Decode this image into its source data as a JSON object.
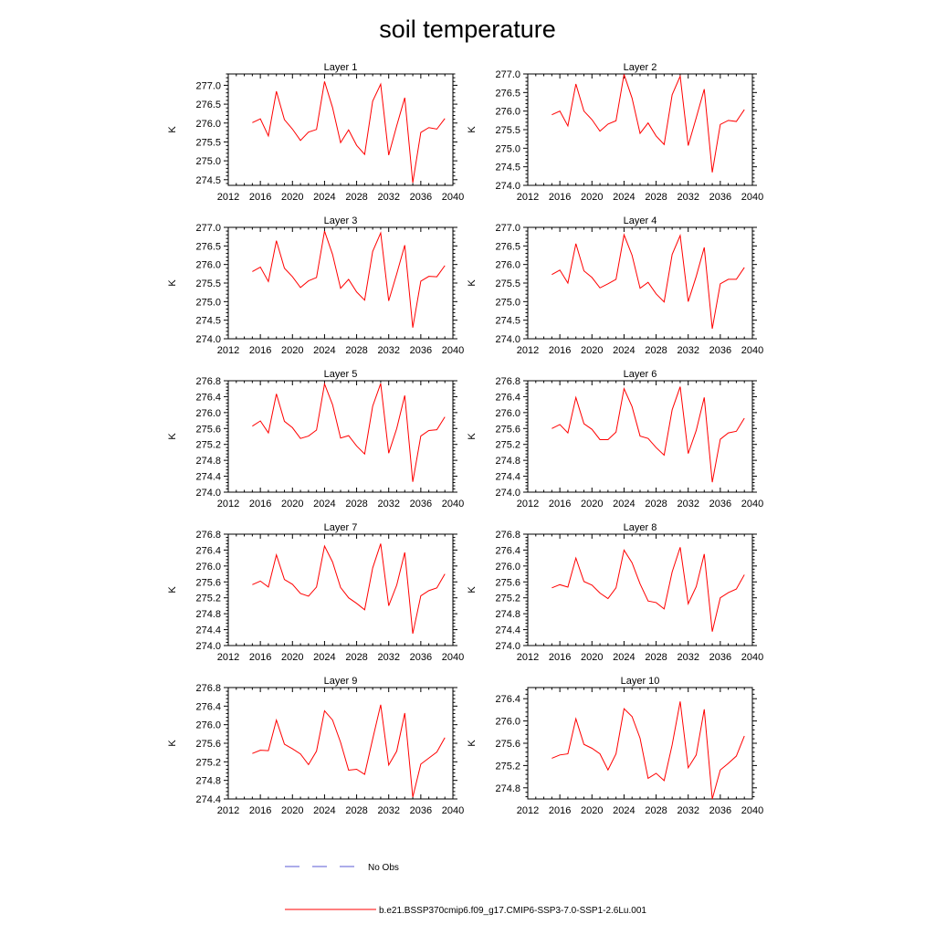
{
  "figure": {
    "title": "soil temperature",
    "legend": [
      {
        "label": "No Obs",
        "color": "#5a5ad6",
        "style": "dashed"
      },
      {
        "label": "b.e21.BSSP370cmip6.f09_g17.CMIP6-SSP3-7.0-SSP1-2.6Lu.001",
        "color": "#ff0000",
        "style": "solid"
      }
    ]
  },
  "chart_data": [
    {
      "type": "line",
      "title": "Layer 1",
      "ylabel": "K",
      "xlim": [
        2012,
        2040
      ],
      "xticks": [
        2012,
        2016,
        2020,
        2024,
        2028,
        2032,
        2036,
        2040
      ],
      "ylim": [
        274.35,
        277.3
      ],
      "yticks": [
        "274.5",
        "275.0",
        "275.5",
        "276.0",
        "276.5",
        "277.0"
      ],
      "x": [
        2015,
        2016,
        2017,
        2018,
        2019,
        2020,
        2021,
        2022,
        2023,
        2024,
        2025,
        2026,
        2027,
        2028,
        2029,
        2030,
        2031,
        2032,
        2033,
        2034,
        2035,
        2036,
        2037,
        2038,
        2039
      ],
      "series": [
        {
          "values": [
            276.01,
            276.11,
            275.66,
            276.84,
            276.09,
            275.84,
            275.54,
            275.76,
            275.83,
            277.1,
            276.41,
            275.48,
            275.82,
            275.41,
            275.17,
            276.58,
            277.03,
            275.15,
            275.93,
            276.67,
            274.42,
            275.75,
            275.88,
            275.84,
            276.12
          ]
        }
      ]
    },
    {
      "type": "line",
      "title": "Layer 2",
      "ylabel": "K",
      "xlim": [
        2012,
        2040
      ],
      "xticks": [
        2012,
        2016,
        2020,
        2024,
        2028,
        2032,
        2036,
        2040
      ],
      "ylim": [
        274.0,
        277.0
      ],
      "yticks": [
        "274.0",
        "274.5",
        "275.0",
        "275.5",
        "276.0",
        "276.5",
        "277.0"
      ],
      "x": [
        2015,
        2016,
        2017,
        2018,
        2019,
        2020,
        2021,
        2022,
        2023,
        2024,
        2025,
        2026,
        2027,
        2028,
        2029,
        2030,
        2031,
        2032,
        2033,
        2034,
        2035,
        2036,
        2037,
        2038,
        2039
      ],
      "series": [
        {
          "values": [
            275.9,
            276.0,
            275.6,
            276.73,
            276.0,
            275.77,
            275.46,
            275.65,
            275.74,
            276.99,
            276.35,
            275.4,
            275.68,
            275.33,
            275.1,
            276.44,
            276.94,
            275.07,
            275.82,
            276.59,
            274.35,
            275.64,
            275.75,
            275.72,
            276.04
          ]
        }
      ]
    },
    {
      "type": "line",
      "title": "Layer 3",
      "ylabel": "K",
      "xlim": [
        2012,
        2040
      ],
      "xticks": [
        2012,
        2016,
        2020,
        2024,
        2028,
        2032,
        2036,
        2040
      ],
      "ylim": [
        274.0,
        277.0
      ],
      "yticks": [
        "274.0",
        "274.5",
        "275.0",
        "275.5",
        "276.0",
        "276.5",
        "277.0"
      ],
      "x": [
        2015,
        2016,
        2017,
        2018,
        2019,
        2020,
        2021,
        2022,
        2023,
        2024,
        2025,
        2026,
        2027,
        2028,
        2029,
        2030,
        2031,
        2032,
        2033,
        2034,
        2035,
        2036,
        2037,
        2038,
        2039
      ],
      "series": [
        {
          "values": [
            275.81,
            275.93,
            275.54,
            276.64,
            275.9,
            275.67,
            275.38,
            275.56,
            275.65,
            276.9,
            276.27,
            275.36,
            275.6,
            275.26,
            275.04,
            276.35,
            276.85,
            275.02,
            275.75,
            276.52,
            274.3,
            275.55,
            275.68,
            275.67,
            275.97
          ]
        }
      ]
    },
    {
      "type": "line",
      "title": "Layer 4",
      "ylabel": "K",
      "xlim": [
        2012,
        2040
      ],
      "xticks": [
        2012,
        2016,
        2020,
        2024,
        2028,
        2032,
        2036,
        2040
      ],
      "ylim": [
        274.0,
        277.0
      ],
      "yticks": [
        "274.0",
        "274.5",
        "275.0",
        "275.5",
        "276.0",
        "276.5",
        "277.0"
      ],
      "x": [
        2015,
        2016,
        2017,
        2018,
        2019,
        2020,
        2021,
        2022,
        2023,
        2024,
        2025,
        2026,
        2027,
        2028,
        2029,
        2030,
        2031,
        2032,
        2033,
        2034,
        2035,
        2036,
        2037,
        2038,
        2039
      ],
      "series": [
        {
          "values": [
            275.73,
            275.85,
            275.5,
            276.56,
            275.83,
            275.65,
            275.37,
            275.48,
            275.6,
            276.8,
            276.25,
            275.36,
            275.52,
            275.21,
            274.99,
            276.27,
            276.78,
            275.0,
            275.68,
            276.46,
            274.27,
            275.48,
            275.6,
            275.6,
            275.92
          ]
        }
      ]
    },
    {
      "type": "line",
      "title": "Layer 5",
      "ylabel": "K",
      "xlim": [
        2012,
        2040
      ],
      "xticks": [
        2012,
        2016,
        2020,
        2024,
        2028,
        2032,
        2036,
        2040
      ],
      "ylim": [
        274.0,
        276.8
      ],
      "yticks": [
        "274.0",
        "274.4",
        "274.8",
        "275.2",
        "275.6",
        "276.0",
        "276.4",
        "276.8"
      ],
      "x": [
        2015,
        2016,
        2017,
        2018,
        2019,
        2020,
        2021,
        2022,
        2023,
        2024,
        2025,
        2026,
        2027,
        2028,
        2029,
        2030,
        2031,
        2032,
        2033,
        2034,
        2035,
        2036,
        2037,
        2038,
        2039
      ],
      "series": [
        {
          "values": [
            275.66,
            275.79,
            275.49,
            276.47,
            275.78,
            275.62,
            275.35,
            275.41,
            275.56,
            276.72,
            276.2,
            275.36,
            275.42,
            275.16,
            274.96,
            276.16,
            276.73,
            274.98,
            275.6,
            276.43,
            274.26,
            275.41,
            275.55,
            275.57,
            275.89
          ]
        }
      ]
    },
    {
      "type": "line",
      "title": "Layer 6",
      "ylabel": "K",
      "xlim": [
        2012,
        2040
      ],
      "xticks": [
        2012,
        2016,
        2020,
        2024,
        2028,
        2032,
        2036,
        2040
      ],
      "ylim": [
        274.0,
        276.8
      ],
      "yticks": [
        "274.0",
        "274.4",
        "274.8",
        "275.2",
        "275.6",
        "276.0",
        "276.4",
        "276.8"
      ],
      "x": [
        2015,
        2016,
        2017,
        2018,
        2019,
        2020,
        2021,
        2022,
        2023,
        2024,
        2025,
        2026,
        2027,
        2028,
        2029,
        2030,
        2031,
        2032,
        2033,
        2034,
        2035,
        2036,
        2037,
        2038,
        2039
      ],
      "series": [
        {
          "values": [
            275.6,
            275.7,
            275.49,
            276.38,
            275.72,
            275.58,
            275.32,
            275.32,
            275.51,
            276.6,
            276.15,
            275.41,
            275.35,
            275.12,
            274.93,
            276.07,
            276.65,
            274.97,
            275.55,
            276.38,
            274.25,
            275.33,
            275.49,
            275.53,
            275.86
          ]
        }
      ]
    },
    {
      "type": "line",
      "title": "Layer 7",
      "ylabel": "K",
      "xlim": [
        2012,
        2040
      ],
      "xticks": [
        2012,
        2016,
        2020,
        2024,
        2028,
        2032,
        2036,
        2040
      ],
      "ylim": [
        274.0,
        276.8
      ],
      "yticks": [
        "274.0",
        "274.4",
        "274.8",
        "275.2",
        "275.6",
        "276.0",
        "276.4",
        "276.8"
      ],
      "x": [
        2015,
        2016,
        2017,
        2018,
        2019,
        2020,
        2021,
        2022,
        2023,
        2024,
        2025,
        2026,
        2027,
        2028,
        2029,
        2030,
        2031,
        2032,
        2033,
        2034,
        2035,
        2036,
        2037,
        2038,
        2039
      ],
      "series": [
        {
          "values": [
            275.53,
            275.62,
            275.47,
            276.28,
            275.66,
            275.54,
            275.31,
            275.24,
            275.47,
            276.5,
            276.1,
            275.46,
            275.2,
            275.06,
            274.9,
            275.95,
            276.56,
            275.0,
            275.52,
            276.34,
            274.3,
            275.25,
            275.38,
            275.45,
            275.8
          ]
        }
      ]
    },
    {
      "type": "line",
      "title": "Layer 8",
      "ylabel": "K",
      "xlim": [
        2012,
        2040
      ],
      "xticks": [
        2012,
        2016,
        2020,
        2024,
        2028,
        2032,
        2036,
        2040
      ],
      "ylim": [
        274.0,
        276.8
      ],
      "yticks": [
        "274.0",
        "274.4",
        "274.8",
        "275.2",
        "275.6",
        "276.0",
        "276.4",
        "276.8"
      ],
      "x": [
        2015,
        2016,
        2017,
        2018,
        2019,
        2020,
        2021,
        2022,
        2023,
        2024,
        2025,
        2026,
        2027,
        2028,
        2029,
        2030,
        2031,
        2032,
        2033,
        2034,
        2035,
        2036,
        2037,
        2038,
        2039
      ],
      "series": [
        {
          "values": [
            275.45,
            275.53,
            275.47,
            276.2,
            275.61,
            275.52,
            275.32,
            275.18,
            275.45,
            276.4,
            276.08,
            275.55,
            275.12,
            275.08,
            274.92,
            275.85,
            276.47,
            275.05,
            275.48,
            276.3,
            274.35,
            275.2,
            275.33,
            275.42,
            275.78
          ]
        }
      ]
    },
    {
      "type": "line",
      "title": "Layer 9",
      "ylabel": "K",
      "xlim": [
        2012,
        2040
      ],
      "xticks": [
        2012,
        2016,
        2020,
        2024,
        2028,
        2032,
        2036,
        2040
      ],
      "ylim": [
        274.4,
        276.8
      ],
      "yticks": [
        "274.4",
        "274.8",
        "275.2",
        "275.6",
        "276.0",
        "276.4",
        "276.8"
      ],
      "x": [
        2015,
        2016,
        2017,
        2018,
        2019,
        2020,
        2021,
        2022,
        2023,
        2024,
        2025,
        2026,
        2027,
        2028,
        2029,
        2030,
        2031,
        2032,
        2033,
        2034,
        2035,
        2036,
        2037,
        2038,
        2039
      ],
      "series": [
        {
          "values": [
            275.38,
            275.45,
            275.44,
            276.1,
            275.58,
            275.48,
            275.37,
            275.14,
            275.43,
            276.3,
            276.1,
            275.62,
            275.02,
            275.04,
            274.93,
            275.69,
            276.43,
            275.13,
            275.43,
            276.25,
            274.44,
            275.15,
            275.28,
            275.41,
            275.72
          ]
        }
      ]
    },
    {
      "type": "line",
      "title": "Layer 10",
      "ylabel": "K",
      "xlim": [
        2012,
        2040
      ],
      "xticks": [
        2012,
        2016,
        2020,
        2024,
        2028,
        2032,
        2036,
        2040
      ],
      "ylim": [
        274.6,
        276.6
      ],
      "yticks": [
        "274.8",
        "275.2",
        "275.6",
        "276.0",
        "276.4"
      ],
      "x": [
        2015,
        2016,
        2017,
        2018,
        2019,
        2020,
        2021,
        2022,
        2023,
        2024,
        2025,
        2026,
        2027,
        2028,
        2029,
        2030,
        2031,
        2032,
        2033,
        2034,
        2035,
        2036,
        2037,
        2038,
        2039
      ],
      "series": [
        {
          "values": [
            275.33,
            275.39,
            275.41,
            276.04,
            275.58,
            275.51,
            275.41,
            275.12,
            275.41,
            276.22,
            276.08,
            275.69,
            274.97,
            275.06,
            274.93,
            275.57,
            276.35,
            275.16,
            275.39,
            276.21,
            274.6,
            275.12,
            275.24,
            275.37,
            275.73
          ]
        }
      ]
    }
  ]
}
